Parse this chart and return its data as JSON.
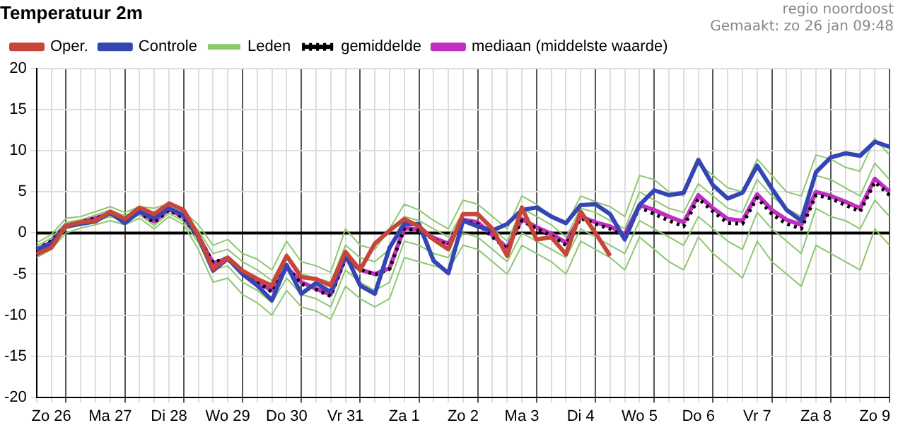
{
  "chart_data": {
    "type": "line",
    "title": "Temperatuur 2m",
    "annotations": [
      "regio noordoost",
      "Gemaakt: zo 26 jan 09:48"
    ],
    "categories": [
      null,
      "Zo 26",
      null,
      null,
      null,
      "Ma 27",
      null,
      null,
      null,
      "Di 28",
      null,
      null,
      null,
      "Wo 29",
      null,
      null,
      null,
      "Do 30",
      null,
      null,
      null,
      "Vr 31",
      null,
      null,
      null,
      "Za 1",
      null,
      null,
      null,
      "Zo 2",
      null,
      null,
      null,
      "Ma 3",
      null,
      null,
      null,
      "Di 4",
      null,
      null,
      null,
      "Wo 5",
      null,
      null,
      null,
      "Do 6",
      null,
      null,
      null,
      "Vr 7",
      null,
      null,
      null,
      "Za 8",
      null,
      null,
      null,
      "Zo 9",
      null
    ],
    "series": [
      {
        "name": "Oper.",
        "color": "#c8453a",
        "values": [
          -2.6,
          -1.8,
          0.9,
          1.3,
          1.5,
          2.6,
          1.7,
          3.1,
          2.3,
          3.6,
          2.8,
          -0.3,
          -4.4,
          -3.0,
          -4.6,
          -5.6,
          -6.4,
          -2.8,
          -5.4,
          -5.6,
          -6.4,
          -2.3,
          -4.5,
          -1.3,
          0.3,
          1.7,
          0.8,
          -0.8,
          -2.0,
          2.3,
          2.3,
          0.5,
          -2.8,
          3.1,
          -0.8,
          -0.5,
          -2.6,
          2.6,
          0.0,
          -2.8,
          null,
          null,
          null,
          null,
          null,
          null,
          null,
          null,
          null,
          null,
          null,
          null,
          null,
          null,
          null,
          null,
          null,
          null,
          null
        ]
      },
      {
        "name": "Controle",
        "color": "#3445b4",
        "values": [
          -2.0,
          -1.3,
          0.8,
          1.1,
          1.4,
          2.5,
          1.2,
          2.6,
          1.8,
          3.0,
          2.2,
          -0.5,
          -4.6,
          -3.1,
          -5.0,
          -6.4,
          -8.2,
          -3.9,
          -7.4,
          -6.1,
          -7.2,
          -2.6,
          -6.4,
          -7.4,
          -1.8,
          1.1,
          1.1,
          -3.4,
          -4.9,
          1.5,
          0.8,
          0.3,
          1.1,
          2.8,
          3.1,
          2.0,
          1.2,
          3.4,
          3.5,
          2.3,
          -0.8,
          3.4,
          5.2,
          4.6,
          4.9,
          8.9,
          5.8,
          4.2,
          4.9,
          8.2,
          5.4,
          2.8,
          1.5,
          7.4,
          9.2,
          9.7,
          9.4,
          11.1,
          10.5
        ]
      },
      {
        "name": "Leden",
        "color": "#8cc870",
        "values": [
          -1.2,
          -0.2,
          1.8,
          2.0,
          2.6,
          3.2,
          2.5,
          3.2,
          3.0,
          3.6,
          2.6,
          1.0,
          -1.5,
          -0.8,
          -2.5,
          -3.2,
          -4.5,
          -1.0,
          -3.5,
          -4.0,
          -4.8,
          0.5,
          -1.5,
          -2.0,
          0.5,
          3.5,
          2.8,
          1.5,
          0.5,
          4.0,
          3.5,
          2.0,
          0.5,
          4.5,
          3.5,
          2.0,
          1.0,
          4.5,
          3.8,
          3.2,
          2.0,
          7.0,
          6.5,
          5.0,
          4.5,
          8.5,
          7.0,
          5.5,
          5.0,
          9.0,
          7.0,
          5.0,
          4.5,
          9.5,
          9.0,
          8.0,
          7.5,
          11.5,
          9.5
        ]
      },
      {
        "color": "#8cc870",
        "values": [
          -3.0,
          -2.0,
          0.0,
          0.6,
          1.0,
          1.5,
          1.0,
          1.8,
          0.5,
          2.0,
          1.0,
          -2.0,
          -6.0,
          -5.5,
          -7.5,
          -8.5,
          -10.0,
          -7.0,
          -9.0,
          -9.5,
          -10.5,
          -6.5,
          -8.0,
          -9.0,
          -8.0,
          -3.0,
          -3.5,
          -4.0,
          -4.5,
          -1.5,
          -2.0,
          -3.5,
          -5.0,
          -1.5,
          -2.5,
          -3.5,
          -5.0,
          -1.0,
          -2.0,
          -3.0,
          -4.5,
          -0.5,
          -2.0,
          -3.5,
          -4.5,
          -0.5,
          -2.5,
          -4.0,
          -5.5,
          -1.0,
          -3.5,
          -5.0,
          -6.5,
          -1.5,
          -2.5,
          -3.5,
          -4.5,
          0.5,
          -1.5
        ]
      },
      {
        "color": "#8cc870",
        "values": [
          -1.6,
          -0.6,
          1.3,
          1.6,
          2.2,
          2.8,
          2.1,
          2.8,
          1.8,
          3.2,
          2.2,
          0.3,
          -2.5,
          -2.0,
          -3.5,
          -4.5,
          -5.8,
          -2.5,
          -5.0,
          -5.5,
          -6.0,
          -1.5,
          -3.0,
          -3.5,
          -2.0,
          2.0,
          1.5,
          0.5,
          -0.5,
          2.5,
          2.0,
          0.5,
          -1.0,
          3.0,
          2.0,
          1.0,
          -0.5,
          3.0,
          2.5,
          1.5,
          0.5,
          5.0,
          4.0,
          3.0,
          2.5,
          6.0,
          4.5,
          3.0,
          2.5,
          6.5,
          4.5,
          3.0,
          2.0,
          7.0,
          6.5,
          5.5,
          4.5,
          8.5,
          6.5
        ]
      },
      {
        "color": "#8cc870",
        "values": [
          -2.5,
          -1.5,
          0.5,
          1.0,
          1.4,
          2.0,
          1.4,
          2.2,
          0.9,
          2.4,
          1.4,
          -1.2,
          -4.5,
          -4.0,
          -6.0,
          -7.0,
          -8.5,
          -5.5,
          -7.5,
          -8.0,
          -9.0,
          -4.5,
          -6.0,
          -7.0,
          -6.0,
          -1.0,
          -1.5,
          -2.5,
          -3.0,
          0.0,
          -0.5,
          -2.0,
          -3.5,
          0.0,
          -1.0,
          -2.0,
          -3.0,
          0.5,
          -0.5,
          -1.5,
          -2.5,
          1.5,
          0.5,
          -0.5,
          -1.5,
          2.0,
          0.5,
          -1.0,
          -2.0,
          2.5,
          0.5,
          -1.0,
          -2.5,
          3.0,
          2.0,
          1.5,
          0.5,
          4.0,
          2.0
        ]
      },
      {
        "name": "gemiddelde",
        "color": "#000000",
        "line_style": "dotted",
        "values": [
          -2.0,
          -1.0,
          0.9,
          1.3,
          1.8,
          2.3,
          1.8,
          2.5,
          1.3,
          2.8,
          1.8,
          -0.5,
          -3.6,
          -3.0,
          -4.8,
          -5.9,
          -7.2,
          -4.1,
          -6.2,
          -6.9,
          -7.7,
          -3.1,
          -4.4,
          -5.1,
          -4.4,
          0.5,
          0.3,
          -0.8,
          -1.5,
          1.5,
          1.1,
          -0.5,
          -2.0,
          1.5,
          0.5,
          -0.3,
          -1.5,
          1.8,
          1.1,
          0.5,
          -0.5,
          3.1,
          2.3,
          1.5,
          0.8,
          4.2,
          2.6,
          1.2,
          1.1,
          4.3,
          2.3,
          1.1,
          0.5,
          4.6,
          4.2,
          3.4,
          2.6,
          6.2,
          4.6
        ]
      },
      {
        "name": "mediaan (middelste waarde)",
        "color": "#c030c0",
        "values": [
          -2.1,
          -1.1,
          0.9,
          1.3,
          1.8,
          2.4,
          1.7,
          2.6,
          1.4,
          2.9,
          1.9,
          -0.4,
          -3.7,
          -3.1,
          -4.9,
          -6.0,
          -7.0,
          -4.2,
          -6.0,
          -6.8,
          -7.5,
          -3.0,
          -4.5,
          -5.0,
          -4.3,
          0.6,
          0.4,
          -0.6,
          -1.3,
          1.6,
          1.3,
          -0.3,
          -1.8,
          1.7,
          0.7,
          -0.1,
          -1.2,
          2.0,
          1.3,
          0.8,
          -0.2,
          3.4,
          2.8,
          2.0,
          1.3,
          4.6,
          3.0,
          1.7,
          1.5,
          4.7,
          2.8,
          1.6,
          1.0,
          5.0,
          4.5,
          3.8,
          3.0,
          6.6,
          5.0
        ]
      }
    ],
    "ylim": [
      -20,
      20
    ],
    "yticks": [
      -20,
      -15,
      -10,
      -5,
      0,
      5,
      10,
      15,
      20
    ],
    "ref_lines": [
      {
        "axis": "y",
        "value": 0,
        "color": "#000000"
      }
    ],
    "grid": true,
    "legend": "top",
    "marker": "none",
    "line_style": "solid"
  }
}
